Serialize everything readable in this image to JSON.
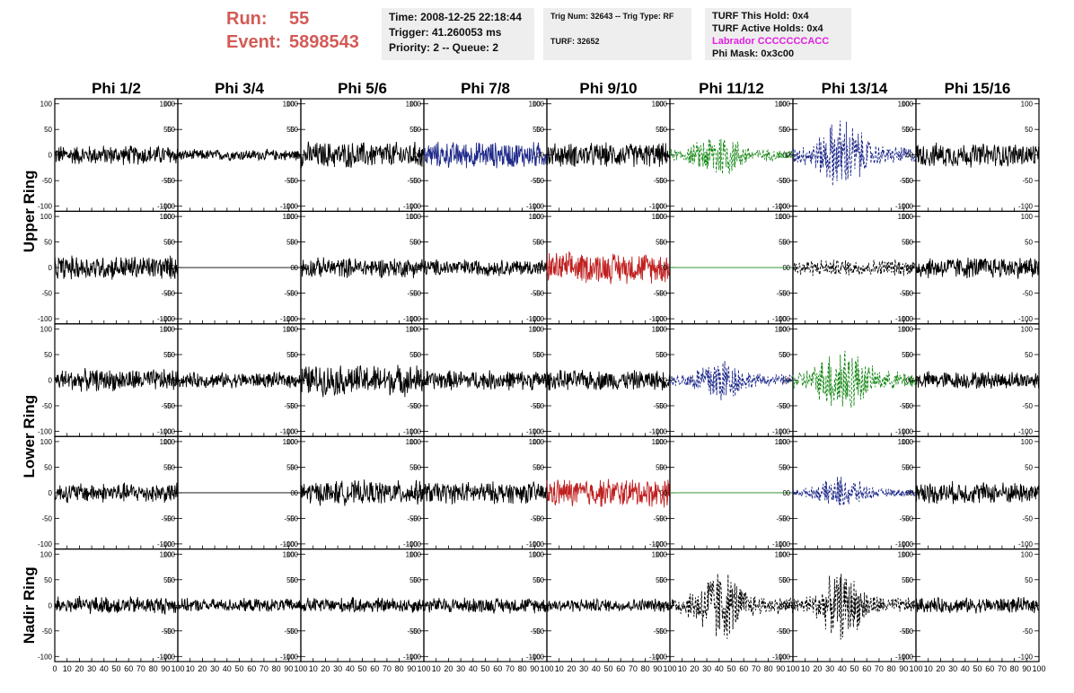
{
  "header": {
    "run_label": "Run:",
    "run_value": "55",
    "event_label": "Event:",
    "event_value": "5898543"
  },
  "info_time": {
    "time": "Time: 2008-12-25 22:18:44",
    "trigger": "Trigger: 41.260053 ms",
    "priority": "Priority: 2 -- Queue: 2"
  },
  "info_trig": {
    "trig": "Trig Num: 32643 -- Trig Type: RF",
    "turf": "TURF: 32652"
  },
  "info_turf": {
    "hold": "TURF This Hold: 0x4",
    "active": "TURF Active Holds: 0x4",
    "labrador": "Labrador CCCCCCCACC",
    "phimask": "Phi Mask: 0x3c00",
    "labrador_color": "#e020e0"
  },
  "chart_data": {
    "type": "line",
    "columns": [
      "Phi 1/2",
      "Phi 3/4",
      "Phi 5/6",
      "Phi 7/8",
      "Phi 9/10",
      "Phi 11/12",
      "Phi 13/14",
      "Phi 15/16"
    ],
    "ring_labels": [
      {
        "name": "Upper Ring",
        "rows": [
          0,
          1
        ]
      },
      {
        "name": "Lower Ring",
        "rows": [
          2,
          3
        ]
      },
      {
        "name": "Nadir Ring",
        "rows": [
          4
        ]
      }
    ],
    "xlim": [
      0,
      100
    ],
    "ylim": [
      -110,
      110
    ],
    "yticks": [
      -100,
      -50,
      0,
      50,
      100
    ],
    "ytick_labels": [
      "-100",
      "-50",
      "0",
      "50",
      "100"
    ],
    "xticks": [
      0,
      10,
      20,
      30,
      40,
      50,
      60,
      70,
      80,
      90,
      100
    ],
    "xtick_labels": [
      "0",
      "10",
      "20",
      "30",
      "40",
      "50",
      "60",
      "70",
      "80",
      "90",
      "100"
    ],
    "colors": {
      "black": "#000000",
      "blue": "#1f2a8a",
      "green": "#1a8a1a",
      "red": "#c02020"
    },
    "traces": [
      [
        {
          "color": "black",
          "amp": 18,
          "style": "solid"
        },
        {
          "color": "black",
          "amp": 10,
          "style": "solid"
        },
        {
          "color": "black",
          "amp": 24,
          "style": "solid"
        },
        {
          "color": "blue",
          "amp": 24,
          "style": "solid"
        },
        {
          "color": "black",
          "amp": 22,
          "style": "solid"
        },
        {
          "color": "green",
          "amp": 30,
          "style": "dashed",
          "burst": true
        },
        {
          "color": "blue",
          "amp": 45,
          "style": "dashed",
          "burst": true
        },
        {
          "color": "black",
          "amp": 22,
          "style": "solid"
        }
      ],
      [
        {
          "color": "black",
          "amp": 22,
          "style": "solid"
        },
        {
          "color": "black",
          "amp": 0,
          "style": "solid"
        },
        {
          "color": "black",
          "amp": 18,
          "style": "solid"
        },
        {
          "color": "black",
          "amp": 15,
          "style": "solid"
        },
        {
          "color": "red",
          "amp": 28,
          "style": "solid"
        },
        {
          "color": "green",
          "amp": 0,
          "style": "solid"
        },
        {
          "color": "black",
          "amp": 15,
          "style": "dashed"
        },
        {
          "color": "black",
          "amp": 20,
          "style": "solid"
        }
      ],
      [
        {
          "color": "black",
          "amp": 20,
          "style": "solid"
        },
        {
          "color": "black",
          "amp": 14,
          "style": "solid"
        },
        {
          "color": "black",
          "amp": 28,
          "style": "solid"
        },
        {
          "color": "black",
          "amp": 18,
          "style": "solid"
        },
        {
          "color": "black",
          "amp": 18,
          "style": "solid"
        },
        {
          "color": "blue",
          "amp": 30,
          "style": "dashed",
          "burst": true
        },
        {
          "color": "green",
          "amp": 45,
          "style": "dashed",
          "burst": true
        },
        {
          "color": "black",
          "amp": 16,
          "style": "solid"
        }
      ],
      [
        {
          "color": "black",
          "amp": 18,
          "style": "solid"
        },
        {
          "color": "black",
          "amp": 0,
          "style": "solid"
        },
        {
          "color": "black",
          "amp": 22,
          "style": "solid"
        },
        {
          "color": "black",
          "amp": 20,
          "style": "solid"
        },
        {
          "color": "red",
          "amp": 26,
          "style": "solid"
        },
        {
          "color": "green",
          "amp": 0,
          "style": "solid"
        },
        {
          "color": "blue",
          "amp": 20,
          "style": "dashed",
          "burst": true
        },
        {
          "color": "black",
          "amp": 20,
          "style": "solid"
        }
      ],
      [
        {
          "color": "black",
          "amp": 16,
          "style": "solid"
        },
        {
          "color": "black",
          "amp": 12,
          "style": "solid"
        },
        {
          "color": "black",
          "amp": 14,
          "style": "solid"
        },
        {
          "color": "black",
          "amp": 14,
          "style": "solid"
        },
        {
          "color": "black",
          "amp": 12,
          "style": "solid"
        },
        {
          "color": "black",
          "amp": 45,
          "style": "dashed",
          "burst": true
        },
        {
          "color": "black",
          "amp": 40,
          "style": "dashed",
          "burst": true
        },
        {
          "color": "black",
          "amp": 14,
          "style": "solid"
        }
      ]
    ]
  }
}
